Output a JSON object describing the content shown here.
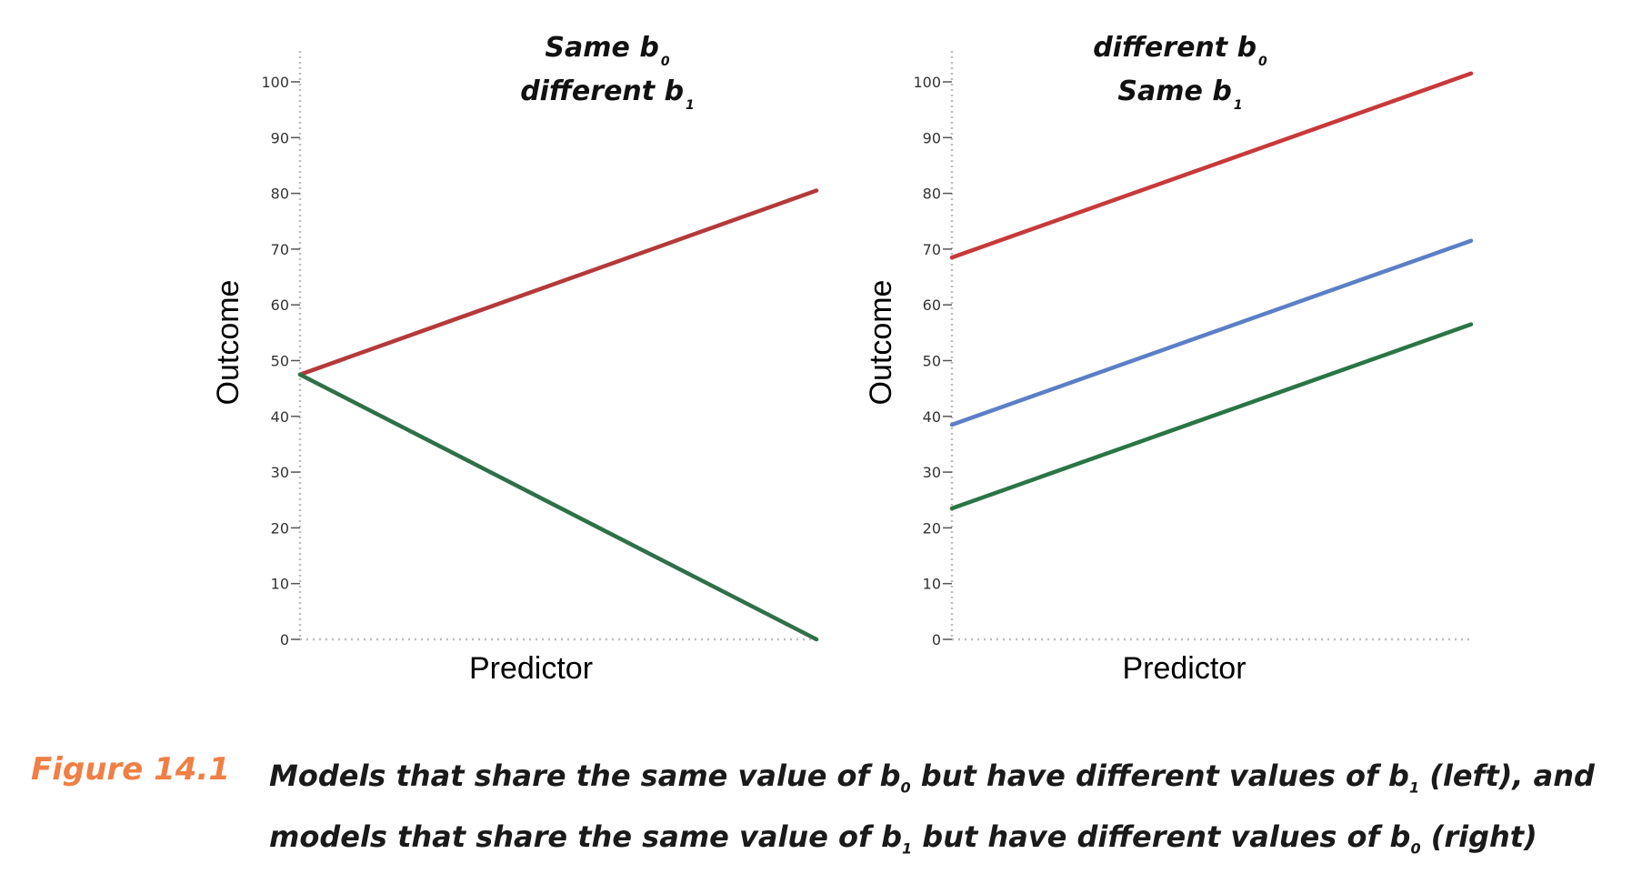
{
  "chart_data": [
    {
      "type": "line",
      "title_lines": [
        {
          "prefix": "Same b",
          "sub": "0"
        },
        {
          "prefix": "different b",
          "sub": "1"
        }
      ],
      "xlabel": "Predictor",
      "ylabel": "Outcome",
      "ylim": [
        0,
        100
      ],
      "yticks": [
        "0",
        "10",
        "20",
        "30",
        "40",
        "50",
        "60",
        "70",
        "80",
        "90",
        "100"
      ],
      "series": [
        {
          "color": "#b5393a",
          "x": [
            0,
            1
          ],
          "y": [
            47.5,
            80.5
          ]
        },
        {
          "color": "#2e7048",
          "x": [
            0,
            1
          ],
          "y": [
            47.5,
            0
          ]
        }
      ]
    },
    {
      "type": "line",
      "title_lines": [
        {
          "prefix": "different b",
          "sub": "0"
        },
        {
          "prefix": "Same b",
          "sub": "1"
        }
      ],
      "xlabel": "Predictor",
      "ylabel": "Outcome",
      "ylim": [
        0,
        100
      ],
      "yticks": [
        "0",
        "10",
        "20",
        "30",
        "40",
        "50",
        "60",
        "70",
        "80",
        "90",
        "100"
      ],
      "series": [
        {
          "color": "#c8393a",
          "x": [
            0,
            1
          ],
          "y": [
            68.5,
            101.5
          ]
        },
        {
          "color": "#5b7fc7",
          "x": [
            0,
            1
          ],
          "y": [
            38.5,
            71.5
          ]
        },
        {
          "color": "#2a7545",
          "x": [
            0,
            1
          ],
          "y": [
            23.5,
            56.5
          ]
        }
      ]
    }
  ],
  "caption": {
    "label": "Figure 14.1",
    "line1": [
      {
        "t": "Models that share the same value of b"
      },
      {
        "sub": "0"
      },
      {
        "t": " but have different values of b"
      },
      {
        "sub": "1"
      },
      {
        "t": " (left), and"
      }
    ],
    "line2": [
      {
        "t": "models that share the same value of b"
      },
      {
        "sub": "1"
      },
      {
        "t": " but have different values of b"
      },
      {
        "sub": "0"
      },
      {
        "t": " (right)"
      }
    ]
  }
}
